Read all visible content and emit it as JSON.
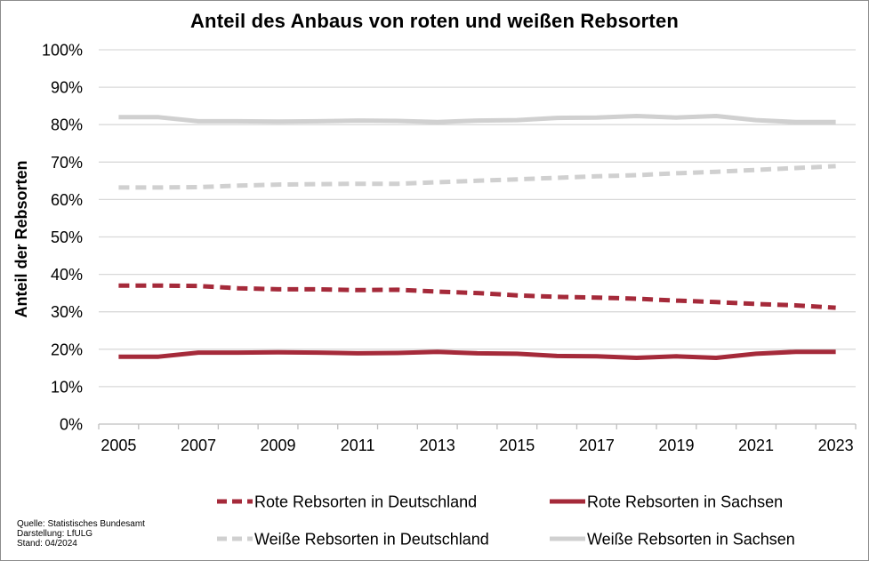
{
  "chart_data": {
    "type": "line",
    "title": "Anteil des Anbaus von roten und weißen Rebsorten",
    "ylabel": "Anteil der Rebsorten",
    "xlabel": "",
    "x": [
      2005,
      2006,
      2007,
      2008,
      2009,
      2010,
      2011,
      2012,
      2013,
      2014,
      2015,
      2016,
      2017,
      2018,
      2019,
      2020,
      2021,
      2022,
      2023
    ],
    "x_tick_labels": [
      "2005",
      "2007",
      "2009",
      "2011",
      "2013",
      "2015",
      "2017",
      "2019",
      "2021",
      "2023"
    ],
    "y_tick_labels": [
      "0%",
      "10%",
      "20%",
      "30%",
      "40%",
      "50%",
      "60%",
      "70%",
      "80%",
      "90%",
      "100%"
    ],
    "ylim": [
      0,
      100
    ],
    "y_unit": "%",
    "grid": "horizontal",
    "legend_position": "bottom",
    "series": [
      {
        "name": "Rote Rebsorten in Deutschland",
        "color": "#a52a3a",
        "dash": true,
        "values": [
          37.0,
          37.0,
          36.9,
          36.3,
          36.0,
          36.0,
          35.8,
          35.9,
          35.4,
          35.0,
          34.4,
          34.0,
          33.8,
          33.5,
          33.0,
          32.6,
          32.1,
          31.7,
          31.1
        ]
      },
      {
        "name": "Rote Rebsorten in Sachsen",
        "color": "#a52a3a",
        "dash": false,
        "values": [
          18.0,
          18.0,
          19.1,
          19.1,
          19.2,
          19.1,
          18.9,
          19.0,
          19.3,
          18.9,
          18.8,
          18.2,
          18.1,
          17.7,
          18.1,
          17.7,
          18.8,
          19.3,
          19.3
        ]
      },
      {
        "name": "Weiße Rebsorten in Deutschland",
        "color": "#d0d0d0",
        "dash": true,
        "values": [
          63.2,
          63.2,
          63.3,
          63.7,
          64.0,
          64.1,
          64.2,
          64.2,
          64.6,
          65.0,
          65.4,
          65.8,
          66.2,
          66.5,
          67.0,
          67.4,
          67.9,
          68.4,
          68.9
        ]
      },
      {
        "name": "Weiße Rebsorten in Sachsen",
        "color": "#d0d0d0",
        "dash": false,
        "values": [
          82.0,
          82.0,
          80.9,
          80.9,
          80.8,
          80.9,
          81.1,
          81.0,
          80.7,
          81.1,
          81.2,
          81.8,
          81.9,
          82.3,
          81.9,
          82.3,
          81.2,
          80.7,
          80.7
        ]
      }
    ]
  },
  "source_lines": [
    "Quelle: Statistisches Bundesamt",
    "Darstellung: LfULG",
    "Stand: 04/2024"
  ],
  "colors": {
    "gridline": "#d9d9d9",
    "axis": "#bfbfbf"
  }
}
